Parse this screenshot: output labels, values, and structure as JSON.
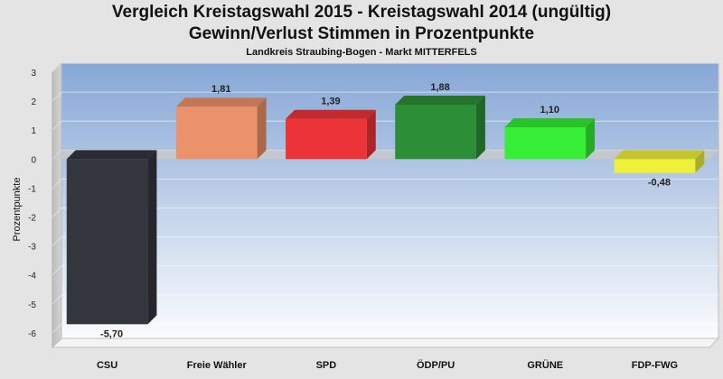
{
  "chart_data": {
    "type": "bar",
    "title": "Vergleich Kreistagswahl 2015 - Kreistagswahl 2014 (ungültig)",
    "subtitle": "Gewinn/Verlust Stimmen in Prozentpunkte",
    "caption": "Landkreis Straubing-Bogen - Markt MITTERFELS",
    "xlabel": "",
    "ylabel": "Prozentpunkte",
    "ylim": [
      -6.5,
      3
    ],
    "yticks": [
      3,
      2,
      1,
      0,
      -1,
      -2,
      -3,
      -4,
      -5,
      -6
    ],
    "ytick_labels": [
      "3",
      "2",
      "1",
      "0",
      "-1",
      "-2",
      "-3",
      "-4",
      "-5",
      "-6"
    ],
    "categories": [
      "CSU",
      "Freie Wähler",
      "SPD",
      "ÖDP/PU",
      "GRÜNE",
      "FDP-FWG"
    ],
    "values": [
      -5.7,
      1.81,
      1.39,
      1.88,
      1.1,
      -0.48
    ],
    "value_labels": [
      "-5,70",
      "1,81",
      "1,39",
      "1,88",
      "1,10",
      "-0,48"
    ],
    "colors": [
      "#33363d",
      "#ec926a",
      "#ec3338",
      "#2c8e36",
      "#35ee35",
      "#eef03a"
    ]
  }
}
